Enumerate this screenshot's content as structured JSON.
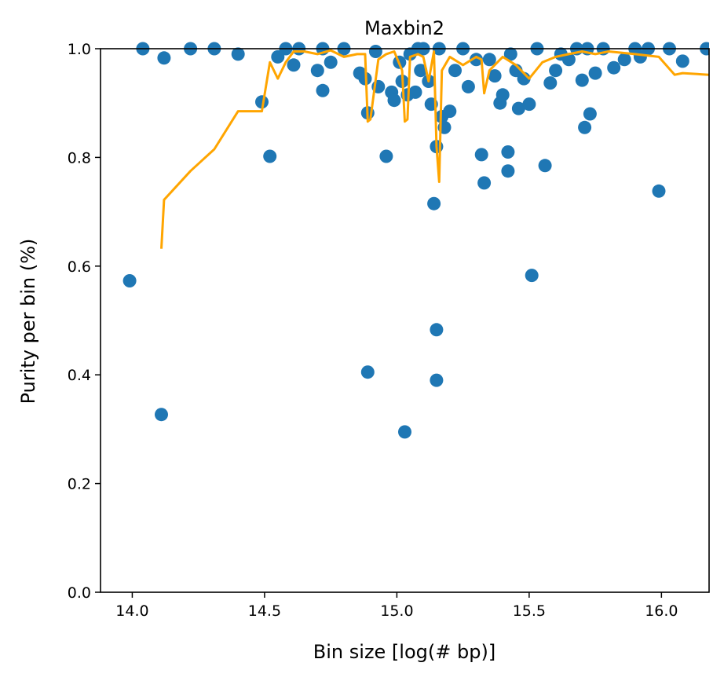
{
  "chart_data": {
    "type": "scatter",
    "title": "Maxbin2",
    "xlabel": "Bin size [log(# bp)]",
    "ylabel": "Purity per bin (%)",
    "xlim": [
      13.88,
      16.18
    ],
    "ylim": [
      0.0,
      1.0
    ],
    "x_ticks": [
      14.0,
      14.5,
      15.0,
      15.5,
      16.0
    ],
    "x_tick_labels": [
      "14.0",
      "14.5",
      "15.0",
      "15.5",
      "16.0"
    ],
    "y_ticks": [
      0.0,
      0.2,
      0.4,
      0.6,
      0.8,
      1.0
    ],
    "y_tick_labels": [
      "0.0",
      "0.2",
      "0.4",
      "0.6",
      "0.8",
      "1.0"
    ],
    "grid": false,
    "colors": {
      "scatter": "#1f77b4",
      "line": "#ffa500"
    },
    "series": [
      {
        "kind": "scatter",
        "x": [
          13.99,
          14.04,
          14.11,
          14.12,
          14.22,
          14.31,
          14.4,
          14.49,
          14.52,
          14.55,
          14.58,
          14.61,
          14.63,
          14.7,
          14.72,
          14.72,
          14.75,
          14.8,
          14.86,
          14.88,
          14.89,
          14.89,
          14.92,
          14.93,
          14.96,
          14.98,
          14.99,
          15.01,
          15.02,
          15.03,
          15.04,
          15.05,
          15.07,
          15.08,
          15.09,
          15.1,
          15.12,
          15.13,
          15.14,
          15.15,
          15.15,
          15.15,
          15.16,
          15.17,
          15.18,
          15.2,
          15.22,
          15.25,
          15.27,
          15.3,
          15.32,
          15.33,
          15.35,
          15.37,
          15.39,
          15.4,
          15.42,
          15.42,
          15.43,
          15.45,
          15.46,
          15.48,
          15.5,
          15.51,
          15.53,
          15.56,
          15.58,
          15.6,
          15.62,
          15.65,
          15.68,
          15.7,
          15.71,
          15.72,
          15.73,
          15.75,
          15.78,
          15.82,
          15.86,
          15.9,
          15.92,
          15.95,
          15.99,
          16.03,
          16.08,
          16.17
        ],
        "y": [
          0.573,
          1.0,
          0.327,
          0.983,
          1.0,
          1.0,
          0.99,
          0.902,
          0.802,
          0.985,
          1.0,
          0.97,
          1.0,
          0.96,
          0.923,
          1.0,
          0.975,
          1.0,
          0.955,
          0.945,
          0.882,
          0.405,
          0.995,
          0.93,
          0.802,
          0.92,
          0.905,
          0.975,
          0.94,
          0.295,
          0.915,
          0.99,
          0.92,
          1.0,
          0.96,
          1.0,
          0.94,
          0.898,
          0.715,
          0.39,
          0.82,
          0.483,
          1.0,
          0.875,
          0.855,
          0.885,
          0.96,
          1.0,
          0.93,
          0.98,
          0.805,
          0.753,
          0.98,
          0.95,
          0.9,
          0.915,
          0.81,
          0.775,
          0.99,
          0.96,
          0.89,
          0.945,
          0.898,
          0.583,
          1.0,
          0.785,
          0.937,
          0.96,
          0.99,
          0.98,
          1.0,
          0.942,
          0.855,
          1.0,
          0.88,
          0.955,
          1.0,
          0.965,
          0.98,
          1.0,
          0.985,
          1.0,
          0.738,
          1.0,
          0.977,
          1.0
        ]
      },
      {
        "kind": "line",
        "x": [
          14.11,
          14.12,
          14.22,
          14.31,
          14.4,
          14.49,
          14.52,
          14.55,
          14.58,
          14.61,
          14.65,
          14.7,
          14.75,
          14.8,
          14.85,
          14.88,
          14.89,
          14.9,
          14.93,
          14.96,
          14.99,
          15.02,
          15.03,
          15.04,
          15.05,
          15.08,
          15.1,
          15.12,
          15.14,
          15.15,
          15.16,
          15.17,
          15.2,
          15.25,
          15.3,
          15.32,
          15.33,
          15.35,
          15.4,
          15.45,
          15.5,
          15.55,
          15.6,
          15.65,
          15.7,
          15.75,
          15.8,
          15.9,
          15.99,
          16.05,
          16.08,
          16.18
        ],
        "y": [
          0.632,
          0.722,
          0.775,
          0.815,
          0.885,
          0.885,
          0.975,
          0.945,
          0.975,
          0.995,
          0.995,
          0.99,
          0.997,
          0.985,
          0.99,
          0.99,
          0.866,
          0.87,
          0.98,
          0.99,
          0.995,
          0.96,
          0.866,
          0.87,
          0.985,
          0.99,
          0.985,
          0.94,
          0.995,
          0.82,
          0.755,
          0.96,
          0.985,
          0.97,
          0.985,
          0.98,
          0.918,
          0.96,
          0.985,
          0.97,
          0.945,
          0.975,
          0.985,
          0.99,
          0.995,
          0.99,
          0.995,
          0.99,
          0.985,
          0.952,
          0.955,
          0.952
        ]
      }
    ]
  }
}
